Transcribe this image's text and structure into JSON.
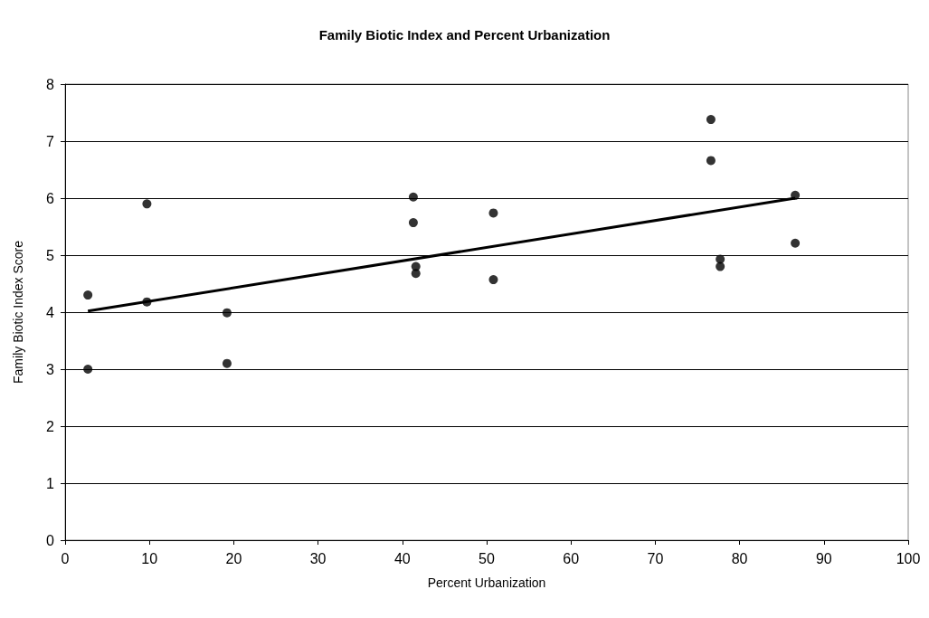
{
  "chart_data": {
    "type": "scatter",
    "title": "Family Biotic Index and Percent Urbanization",
    "xlabel": "Percent Urbanization",
    "ylabel": "Family Biotic Index Score",
    "xlim": [
      0,
      100
    ],
    "xticks": [
      0,
      10,
      20,
      30,
      40,
      50,
      60,
      70,
      80,
      90,
      100
    ],
    "ylim": [
      0,
      8
    ],
    "yticks": [
      0,
      1,
      2,
      3,
      4,
      5,
      6,
      7,
      8
    ],
    "grid": "y",
    "marker": "circle",
    "series": [
      {
        "color": "#000000",
        "x": [
          2.7,
          2.7,
          9.7,
          9.7,
          19.2,
          19.2,
          41.3,
          41.3,
          41.6,
          41.6,
          50.8,
          50.8,
          76.6,
          76.6,
          77.7,
          77.7,
          86.6,
          86.6
        ],
        "values": [
          4.3,
          3.0,
          5.9,
          4.18,
          3.99,
          3.1,
          6.02,
          5.57,
          4.8,
          4.68,
          5.74,
          4.57,
          7.38,
          6.66,
          4.93,
          4.8,
          6.05,
          5.21
        ]
      },
      {
        "type": "line",
        "color": "#000000",
        "marker": "none",
        "line_style": "solid",
        "x": [
          2.7,
          86.6
        ],
        "values": [
          4.02,
          6.0
        ]
      }
    ]
  }
}
